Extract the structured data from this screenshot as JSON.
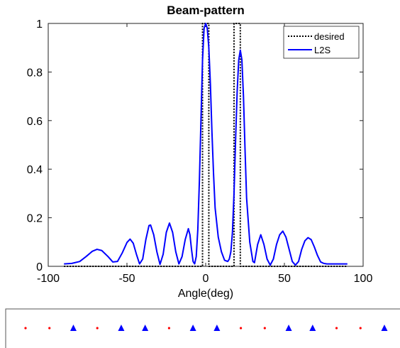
{
  "chart_data": {
    "type": "line",
    "title": "Beam-pattern",
    "xlabel": "Angle(deg)",
    "ylabel": "",
    "xlim": [
      -100,
      100
    ],
    "ylim": [
      0,
      1
    ],
    "x_ticks": [
      -100,
      -50,
      0,
      50,
      100
    ],
    "y_ticks": [
      0,
      0.2,
      0.4,
      0.6,
      0.8,
      1
    ],
    "x_tick_labels": [
      "-100",
      "-50",
      "0",
      "50",
      "100"
    ],
    "y_tick_labels": [
      "0",
      "0.2",
      "0.4",
      "0.6",
      "0.8",
      "1"
    ],
    "grid": false,
    "legend_position": "top-right",
    "series": [
      {
        "name": "desired",
        "style": "dotted",
        "color": "#000000",
        "x": [
          -90,
          -2,
          -2,
          2,
          2,
          18,
          18,
          22,
          22,
          90
        ],
        "y": [
          0,
          0,
          1,
          1,
          0,
          0,
          1,
          1,
          0,
          0
        ]
      },
      {
        "name": "L2S",
        "style": "solid",
        "color": "#0000ff",
        "x": [
          -90,
          -85,
          -80,
          -76,
          -72,
          -69,
          -66,
          -62,
          -59,
          -56,
          -53,
          -50,
          -48,
          -46,
          -44,
          -42,
          -40,
          -38,
          -36,
          -35,
          -33,
          -31,
          -29,
          -27,
          -25,
          -23,
          -21,
          -19,
          -17,
          -15,
          -13,
          -11,
          -10,
          -9,
          -8,
          -7,
          -6,
          -5,
          -4,
          -3,
          -2,
          -1,
          0,
          1,
          2,
          3,
          4,
          5,
          6,
          8,
          10,
          12,
          14,
          15,
          16,
          17,
          18,
          19,
          20,
          21,
          22,
          23,
          24,
          25,
          26,
          28,
          30,
          31,
          33,
          35,
          37,
          39,
          41,
          43,
          45,
          47,
          49,
          51,
          53,
          55,
          57,
          59,
          61,
          63,
          65,
          67,
          69,
          71,
          73,
          75,
          77,
          80,
          85,
          90
        ],
        "y": [
          0.01,
          0.012,
          0.02,
          0.04,
          0.062,
          0.07,
          0.065,
          0.04,
          0.018,
          0.02,
          0.055,
          0.098,
          0.112,
          0.095,
          0.05,
          0.01,
          0.03,
          0.11,
          0.168,
          0.17,
          0.13,
          0.06,
          0.008,
          0.05,
          0.14,
          0.178,
          0.14,
          0.06,
          0.01,
          0.04,
          0.11,
          0.155,
          0.13,
          0.07,
          0.02,
          0.01,
          0.04,
          0.15,
          0.35,
          0.6,
          0.85,
          0.98,
          1.0,
          0.98,
          0.9,
          0.75,
          0.55,
          0.38,
          0.24,
          0.12,
          0.06,
          0.025,
          0.02,
          0.03,
          0.06,
          0.14,
          0.3,
          0.52,
          0.72,
          0.85,
          0.89,
          0.85,
          0.7,
          0.48,
          0.28,
          0.1,
          0.02,
          0.015,
          0.09,
          0.13,
          0.09,
          0.03,
          0.005,
          0.03,
          0.09,
          0.13,
          0.145,
          0.12,
          0.07,
          0.02,
          0.005,
          0.02,
          0.07,
          0.105,
          0.118,
          0.11,
          0.08,
          0.045,
          0.018,
          0.012,
          0.01,
          0.01,
          0.01,
          0.01
        ]
      }
    ]
  },
  "array_strip": {
    "elements": [
      "dot",
      "dot",
      "triangle",
      "dot",
      "triangle",
      "triangle",
      "dot",
      "triangle",
      "triangle",
      "dot",
      "dot",
      "triangle",
      "triangle",
      "dot",
      "dot",
      "triangle"
    ],
    "colors": {
      "dot": "#ff0000",
      "triangle": "#0000ff"
    }
  }
}
